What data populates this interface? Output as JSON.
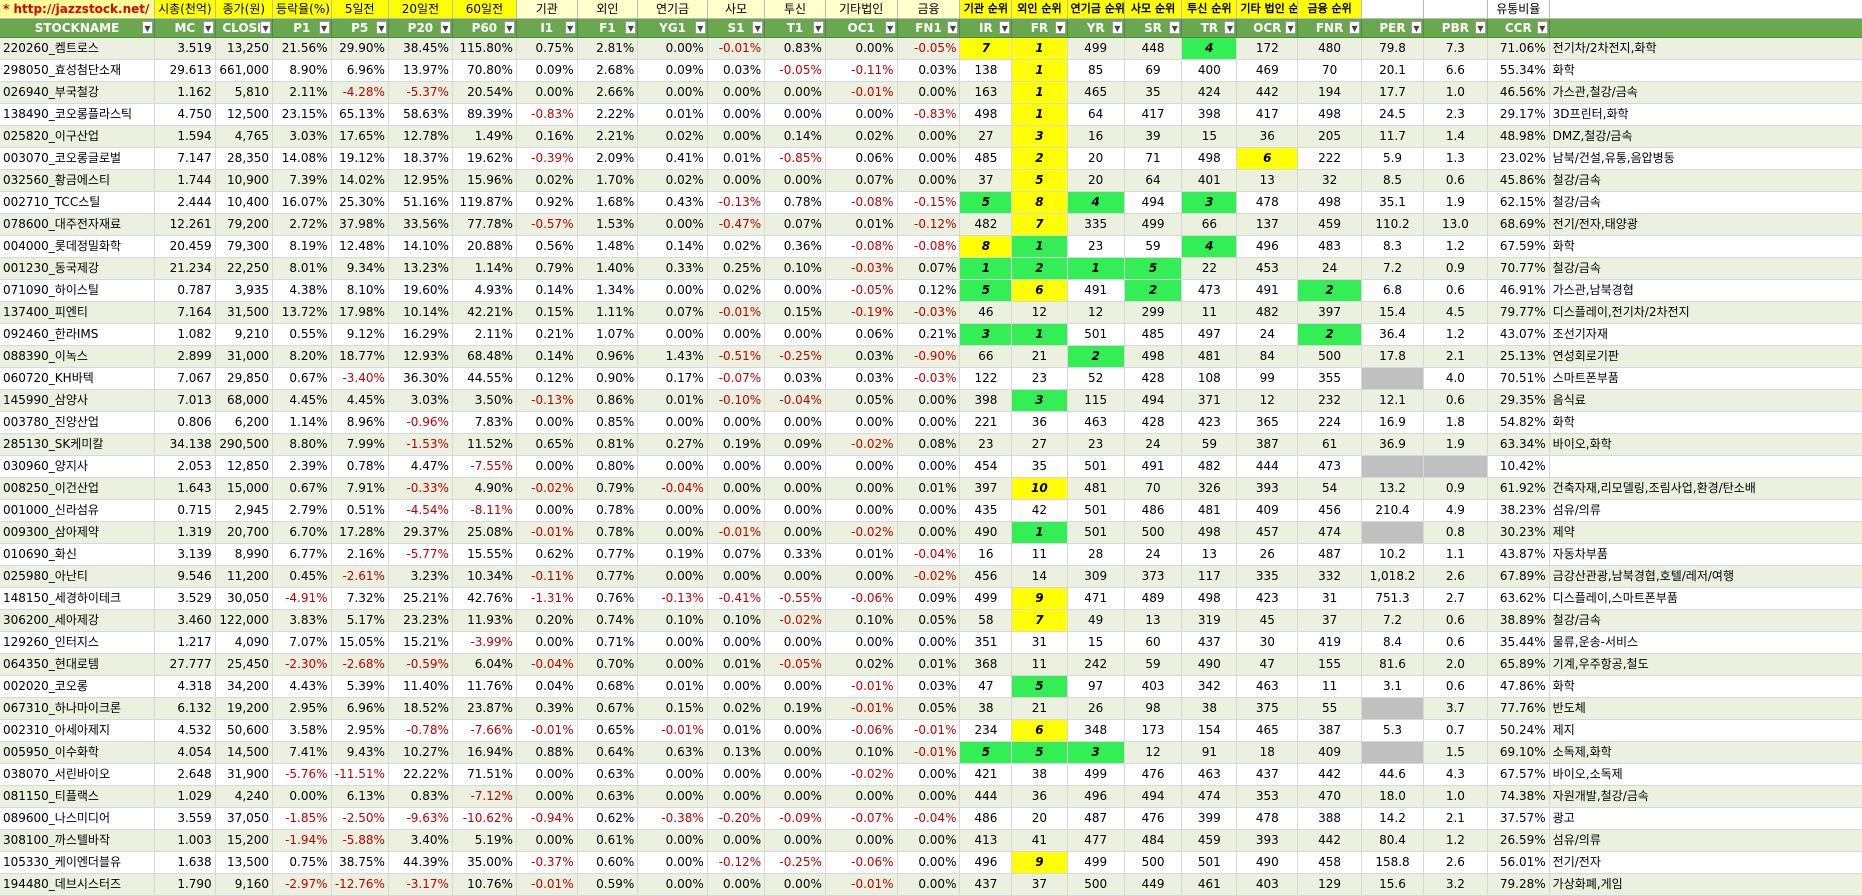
{
  "top_labels": [
    "* http://jazzstock.net/ 활용",
    "시총(천억)",
    "종가(원)",
    "등락율(%)",
    "5일전",
    "20일전",
    "60일전",
    "기관",
    "외인",
    "연기금",
    "사모",
    "투신",
    "기타법인",
    "금융",
    "기관 순위",
    "외인 순위",
    "연기금 순위",
    "사모 순위",
    "투신 순위",
    "기타 법인 순위",
    "금융 순위",
    "",
    "",
    "유통비율"
  ],
  "headers": [
    "STOCKNAME",
    "MC",
    "CLOSE",
    "P1",
    "P5",
    "P20",
    "P60",
    "I1",
    "F1",
    "YG1",
    "S1",
    "T1",
    "OC1",
    "FN1",
    "IR",
    "FR",
    "YR",
    "SR",
    "TR",
    "OCR",
    "FNR",
    "PER",
    "PBR",
    "CCR",
    ""
  ],
  "colors": {
    "header_green": "#6aa84f",
    "row_alt": "#ebf1de",
    "highlight_yellow": "#ffff00",
    "highlight_green": "#33ee55",
    "negative_red": "#c00000"
  },
  "rows": [
    [
      "220260_켐트로스",
      "3.519",
      "13,250",
      "21.56%",
      "29.90%",
      "38.45%",
      "115.80%",
      "0.75%",
      "2.81%",
      "0.00%",
      "-0.01%",
      "0.83%",
      "0.00%",
      "-0.05%",
      "7",
      "1",
      "499",
      "448",
      "4",
      "172",
      "480",
      "79.8",
      "7.3",
      "71.06%",
      "전기차/2차전지,화학"
    ],
    [
      "298050_효성첨단소재",
      "29.613",
      "661,000",
      "8.90%",
      "6.96%",
      "13.97%",
      "70.80%",
      "0.09%",
      "2.68%",
      "0.09%",
      "0.03%",
      "-0.05%",
      "-0.11%",
      "0.03%",
      "138",
      "1",
      "85",
      "69",
      "400",
      "469",
      "70",
      "20.1",
      "6.6",
      "55.34%",
      "화학"
    ],
    [
      "026940_부국철강",
      "1.162",
      "5,810",
      "2.11%",
      "-4.28%",
      "-5.37%",
      "20.54%",
      "0.00%",
      "2.66%",
      "0.00%",
      "0.00%",
      "0.00%",
      "-0.01%",
      "0.00%",
      "163",
      "1",
      "465",
      "35",
      "424",
      "442",
      "194",
      "17.7",
      "1.0",
      "46.56%",
      "가스관,철강/금속"
    ],
    [
      "138490_코오롱플라스틱",
      "4.750",
      "12,500",
      "23.15%",
      "65.13%",
      "58.63%",
      "89.39%",
      "-0.83%",
      "2.22%",
      "0.01%",
      "0.00%",
      "0.00%",
      "0.00%",
      "-0.83%",
      "498",
      "1",
      "64",
      "417",
      "398",
      "417",
      "498",
      "24.5",
      "2.3",
      "29.17%",
      "3D프린터,화학"
    ],
    [
      "025820_이구산업",
      "1.594",
      "4,765",
      "3.03%",
      "17.65%",
      "12.78%",
      "1.49%",
      "0.16%",
      "2.21%",
      "0.02%",
      "0.00%",
      "0.14%",
      "0.02%",
      "0.00%",
      "27",
      "3",
      "16",
      "39",
      "15",
      "36",
      "205",
      "11.7",
      "1.4",
      "48.98%",
      "DMZ,철강/금속"
    ],
    [
      "003070_코오롱글로벌",
      "7.147",
      "28,350",
      "14.08%",
      "19.12%",
      "18.37%",
      "19.62%",
      "-0.39%",
      "2.09%",
      "0.41%",
      "0.01%",
      "-0.85%",
      "0.06%",
      "0.00%",
      "485",
      "2",
      "20",
      "71",
      "498",
      "6",
      "222",
      "5.9",
      "1.3",
      "23.02%",
      "남북/건설,유통,음압병동"
    ],
    [
      "032560_황금에스티",
      "1.744",
      "10,900",
      "7.39%",
      "14.02%",
      "12.95%",
      "15.96%",
      "0.02%",
      "1.70%",
      "0.02%",
      "0.00%",
      "0.00%",
      "0.07%",
      "0.00%",
      "37",
      "5",
      "20",
      "64",
      "401",
      "13",
      "32",
      "8.5",
      "0.6",
      "45.86%",
      "철강/금속"
    ],
    [
      "002710_TCC스틸",
      "2.444",
      "10,400",
      "16.07%",
      "25.30%",
      "51.16%",
      "119.87%",
      "0.92%",
      "1.68%",
      "0.43%",
      "-0.13%",
      "0.78%",
      "-0.08%",
      "-0.15%",
      "5",
      "8",
      "4",
      "494",
      "3",
      "478",
      "498",
      "35.1",
      "1.9",
      "62.15%",
      "철강/금속"
    ],
    [
      "078600_대주전자재료",
      "12.261",
      "79,200",
      "2.72%",
      "37.98%",
      "33.56%",
      "77.78%",
      "-0.57%",
      "1.53%",
      "0.00%",
      "-0.47%",
      "0.07%",
      "0.01%",
      "-0.12%",
      "482",
      "7",
      "335",
      "499",
      "66",
      "137",
      "459",
      "110.2",
      "13.0",
      "68.69%",
      "전기/전자,태양광"
    ],
    [
      "004000_롯데정밀화학",
      "20.459",
      "79,300",
      "8.19%",
      "12.48%",
      "14.10%",
      "20.88%",
      "0.56%",
      "1.48%",
      "0.14%",
      "0.02%",
      "0.36%",
      "-0.08%",
      "-0.08%",
      "8",
      "1",
      "23",
      "59",
      "4",
      "496",
      "483",
      "8.3",
      "1.2",
      "67.59%",
      "화학"
    ],
    [
      "001230_동국제강",
      "21.234",
      "22,250",
      "8.01%",
      "9.34%",
      "13.23%",
      "1.14%",
      "0.79%",
      "1.40%",
      "0.33%",
      "0.25%",
      "0.10%",
      "-0.03%",
      "0.07%",
      "1",
      "2",
      "1",
      "5",
      "22",
      "453",
      "24",
      "7.2",
      "0.9",
      "70.77%",
      "철강/금속"
    ],
    [
      "071090_하이스틸",
      "0.787",
      "3,935",
      "4.38%",
      "8.10%",
      "19.60%",
      "4.93%",
      "0.14%",
      "1.34%",
      "0.00%",
      "0.02%",
      "0.00%",
      "-0.05%",
      "0.12%",
      "5",
      "6",
      "491",
      "2",
      "473",
      "491",
      "2",
      "6.8",
      "0.6",
      "46.91%",
      "가스관,남북경협"
    ],
    [
      "137400_피엔티",
      "7.164",
      "31,500",
      "13.72%",
      "17.98%",
      "10.14%",
      "42.21%",
      "0.15%",
      "1.11%",
      "0.07%",
      "-0.01%",
      "0.15%",
      "-0.19%",
      "-0.03%",
      "46",
      "12",
      "12",
      "299",
      "11",
      "482",
      "397",
      "15.4",
      "4.5",
      "79.77%",
      "디스플레이,전기차/2차전지"
    ],
    [
      "092460_한라IMS",
      "1.082",
      "9,210",
      "0.55%",
      "9.12%",
      "16.29%",
      "2.11%",
      "0.21%",
      "1.07%",
      "0.00%",
      "0.00%",
      "0.00%",
      "0.06%",
      "0.21%",
      "3",
      "1",
      "501",
      "485",
      "497",
      "24",
      "2",
      "36.4",
      "1.2",
      "43.07%",
      "조선기자재"
    ],
    [
      "088390_이녹스",
      "2.899",
      "31,000",
      "8.20%",
      "18.77%",
      "12.93%",
      "68.48%",
      "0.14%",
      "0.96%",
      "1.43%",
      "-0.51%",
      "-0.25%",
      "0.03%",
      "-0.90%",
      "66",
      "21",
      "2",
      "498",
      "481",
      "84",
      "500",
      "17.8",
      "2.1",
      "25.13%",
      "연성회로기판"
    ],
    [
      "060720_KH바텍",
      "7.067",
      "29,850",
      "0.67%",
      "-3.40%",
      "36.30%",
      "44.55%",
      "0.12%",
      "0.90%",
      "0.17%",
      "-0.07%",
      "0.03%",
      "0.03%",
      "-0.03%",
      "122",
      "23",
      "52",
      "428",
      "108",
      "99",
      "355",
      "",
      "4.0",
      "70.51%",
      "스마트폰부품"
    ],
    [
      "145990_삼양사",
      "7.013",
      "68,000",
      "4.45%",
      "4.45%",
      "3.03%",
      "3.50%",
      "-0.13%",
      "0.86%",
      "0.01%",
      "-0.10%",
      "-0.04%",
      "0.05%",
      "0.00%",
      "398",
      "3",
      "115",
      "494",
      "371",
      "12",
      "232",
      "12.1",
      "0.6",
      "29.35%",
      "음식료"
    ],
    [
      "003780_진양산업",
      "0.806",
      "6,200",
      "1.14%",
      "8.96%",
      "-0.96%",
      "7.83%",
      "0.00%",
      "0.85%",
      "0.00%",
      "0.00%",
      "0.00%",
      "0.00%",
      "0.00%",
      "221",
      "36",
      "463",
      "428",
      "423",
      "365",
      "224",
      "16.9",
      "1.8",
      "54.82%",
      "화학"
    ],
    [
      "285130_SK케미칼",
      "34.138",
      "290,500",
      "8.80%",
      "7.99%",
      "-1.53%",
      "11.52%",
      "0.65%",
      "0.81%",
      "0.27%",
      "0.19%",
      "0.09%",
      "-0.02%",
      "0.08%",
      "23",
      "27",
      "23",
      "24",
      "59",
      "387",
      "61",
      "36.9",
      "1.9",
      "63.34%",
      "바이오,화학"
    ],
    [
      "030960_양지사",
      "2.053",
      "12,850",
      "2.39%",
      "0.78%",
      "4.47%",
      "-7.55%",
      "0.00%",
      "0.80%",
      "0.00%",
      "0.00%",
      "0.00%",
      "0.00%",
      "0.00%",
      "454",
      "35",
      "501",
      "491",
      "482",
      "444",
      "473",
      "",
      "",
      "10.42%",
      ""
    ],
    [
      "008250_이건산업",
      "1.643",
      "15,000",
      "0.67%",
      "7.91%",
      "-0.33%",
      "4.90%",
      "-0.02%",
      "0.79%",
      "-0.04%",
      "0.00%",
      "0.00%",
      "0.00%",
      "0.01%",
      "397",
      "10",
      "481",
      "70",
      "326",
      "393",
      "54",
      "13.2",
      "0.9",
      "61.92%",
      "건축자재,리모델링,조림사업,환경/탄소배"
    ],
    [
      "001000_신라섬유",
      "0.715",
      "2,945",
      "2.79%",
      "0.51%",
      "-4.54%",
      "-8.11%",
      "0.00%",
      "0.78%",
      "0.00%",
      "0.00%",
      "0.00%",
      "0.00%",
      "0.00%",
      "435",
      "42",
      "501",
      "486",
      "481",
      "409",
      "456",
      "210.4",
      "4.9",
      "38.23%",
      "섬유/의류"
    ],
    [
      "009300_삼아제약",
      "1.319",
      "20,700",
      "6.70%",
      "17.28%",
      "29.37%",
      "25.08%",
      "-0.01%",
      "0.78%",
      "0.00%",
      "-0.01%",
      "0.00%",
      "-0.02%",
      "0.00%",
      "490",
      "1",
      "501",
      "500",
      "498",
      "457",
      "474",
      "",
      "0.8",
      "30.23%",
      "제약"
    ],
    [
      "010690_화신",
      "3.139",
      "8,990",
      "6.77%",
      "2.16%",
      "-5.77%",
      "15.55%",
      "0.62%",
      "0.77%",
      "0.19%",
      "0.07%",
      "0.33%",
      "0.01%",
      "-0.04%",
      "16",
      "11",
      "28",
      "24",
      "13",
      "26",
      "487",
      "10.2",
      "1.1",
      "43.87%",
      "자동차부품"
    ],
    [
      "025980_아난티",
      "9.546",
      "11,200",
      "0.45%",
      "-2.61%",
      "3.23%",
      "10.34%",
      "-0.11%",
      "0.77%",
      "0.00%",
      "0.00%",
      "0.00%",
      "0.00%",
      "-0.02%",
      "456",
      "14",
      "309",
      "373",
      "117",
      "335",
      "332",
      "1,018.2",
      "2.6",
      "67.89%",
      "금강산관광,남북경협,호텔/레저/여행"
    ],
    [
      "148150_세경하이테크",
      "3.529",
      "30,050",
      "-4.91%",
      "7.32%",
      "25.21%",
      "42.76%",
      "-1.31%",
      "0.76%",
      "-0.13%",
      "-0.41%",
      "-0.55%",
      "-0.06%",
      "0.09%",
      "499",
      "9",
      "471",
      "489",
      "498",
      "423",
      "31",
      "751.3",
      "2.7",
      "63.62%",
      "디스플레이,스마트폰부품"
    ],
    [
      "306200_세아제강",
      "3.460",
      "122,000",
      "3.83%",
      "5.17%",
      "23.23%",
      "11.93%",
      "0.20%",
      "0.74%",
      "0.10%",
      "0.10%",
      "-0.02%",
      "0.10%",
      "0.05%",
      "58",
      "7",
      "49",
      "13",
      "319",
      "45",
      "37",
      "7.2",
      "0.6",
      "38.89%",
      "철강/금속"
    ],
    [
      "129260_인터지스",
      "1.217",
      "4,090",
      "7.07%",
      "15.05%",
      "15.21%",
      "-3.99%",
      "0.00%",
      "0.71%",
      "0.00%",
      "0.00%",
      "0.00%",
      "0.00%",
      "0.00%",
      "351",
      "31",
      "15",
      "60",
      "437",
      "30",
      "419",
      "8.4",
      "0.6",
      "35.44%",
      "물류,운송-서비스"
    ],
    [
      "064350_현대로템",
      "27.777",
      "25,450",
      "-2.30%",
      "-2.68%",
      "-0.59%",
      "6.04%",
      "-0.04%",
      "0.70%",
      "0.00%",
      "0.01%",
      "-0.05%",
      "0.02%",
      "0.01%",
      "368",
      "11",
      "242",
      "59",
      "490",
      "47",
      "155",
      "81.6",
      "2.0",
      "65.89%",
      "기계,우주항공,철도"
    ],
    [
      "002020_코오롱",
      "4.318",
      "34,200",
      "4.43%",
      "5.39%",
      "11.40%",
      "11.76%",
      "0.04%",
      "0.68%",
      "0.01%",
      "0.00%",
      "0.00%",
      "-0.01%",
      "0.03%",
      "47",
      "5",
      "97",
      "403",
      "342",
      "463",
      "11",
      "3.1",
      "0.6",
      "47.86%",
      "화학"
    ],
    [
      "067310_하나마이크론",
      "6.132",
      "19,200",
      "2.95%",
      "6.96%",
      "18.52%",
      "23.87%",
      "0.39%",
      "0.67%",
      "0.15%",
      "0.02%",
      "0.19%",
      "-0.01%",
      "0.05%",
      "38",
      "21",
      "26",
      "98",
      "38",
      "375",
      "55",
      "",
      "3.7",
      "77.76%",
      "반도체"
    ],
    [
      "002310_아세아제지",
      "4.532",
      "50,600",
      "3.58%",
      "2.95%",
      "-0.78%",
      "-7.66%",
      "-0.01%",
      "0.65%",
      "-0.01%",
      "0.01%",
      "0.00%",
      "-0.06%",
      "-0.01%",
      "234",
      "6",
      "348",
      "173",
      "154",
      "465",
      "387",
      "5.3",
      "0.7",
      "50.24%",
      "제지"
    ],
    [
      "005950_이수화학",
      "4.054",
      "14,500",
      "7.41%",
      "9.43%",
      "10.27%",
      "16.94%",
      "0.88%",
      "0.64%",
      "0.63%",
      "0.13%",
      "0.00%",
      "0.10%",
      "-0.01%",
      "5",
      "5",
      "3",
      "12",
      "91",
      "18",
      "409",
      "",
      "1.5",
      "69.10%",
      "소독제,화학"
    ],
    [
      "038070_서린바이오",
      "2.648",
      "31,900",
      "-5.76%",
      "-11.51%",
      "22.22%",
      "71.51%",
      "0.00%",
      "0.63%",
      "0.00%",
      "0.00%",
      "0.00%",
      "-0.02%",
      "0.00%",
      "421",
      "38",
      "499",
      "476",
      "463",
      "437",
      "442",
      "44.6",
      "4.3",
      "67.57%",
      "바이오,소독제"
    ],
    [
      "081150_티플랙스",
      "1.029",
      "4,240",
      "0.00%",
      "6.13%",
      "0.83%",
      "-7.12%",
      "0.00%",
      "0.63%",
      "0.00%",
      "0.00%",
      "0.00%",
      "0.00%",
      "0.00%",
      "444",
      "36",
      "496",
      "494",
      "474",
      "353",
      "470",
      "18.0",
      "1.0",
      "74.38%",
      "자원개발,철강/금속"
    ],
    [
      "089600_나스미디어",
      "3.559",
      "37,050",
      "-1.85%",
      "-2.50%",
      "-9.63%",
      "-10.62%",
      "-0.94%",
      "0.62%",
      "-0.38%",
      "-0.20%",
      "-0.09%",
      "-0.07%",
      "-0.04%",
      "486",
      "20",
      "487",
      "476",
      "399",
      "478",
      "388",
      "14.2",
      "2.1",
      "37.57%",
      "광고"
    ],
    [
      "308100_까스텔바작",
      "1.003",
      "15,200",
      "-1.94%",
      "-5.88%",
      "3.40%",
      "5.19%",
      "0.00%",
      "0.61%",
      "0.00%",
      "0.00%",
      "0.00%",
      "0.00%",
      "0.00%",
      "413",
      "41",
      "477",
      "484",
      "459",
      "393",
      "442",
      "80.4",
      "1.2",
      "26.59%",
      "섬유/의류"
    ],
    [
      "105330_케이엔더블유",
      "1.638",
      "13,500",
      "0.75%",
      "38.75%",
      "44.39%",
      "35.00%",
      "-0.37%",
      "0.60%",
      "0.00%",
      "-0.12%",
      "-0.25%",
      "-0.06%",
      "0.00%",
      "496",
      "9",
      "499",
      "500",
      "501",
      "490",
      "458",
      "158.8",
      "2.6",
      "56.01%",
      "전기/전자"
    ],
    [
      "194480_데브시스터즈",
      "1.790",
      "9,160",
      "-2.97%",
      "-12.76%",
      "-3.17%",
      "10.76%",
      "-0.01%",
      "0.59%",
      "0.00%",
      "0.00%",
      "0.00%",
      "-0.01%",
      "0.00%",
      "437",
      "37",
      "500",
      "449",
      "461",
      "403",
      "129",
      "15.6",
      "3.2",
      "79.28%",
      "가상화폐,게임"
    ]
  ]
}
